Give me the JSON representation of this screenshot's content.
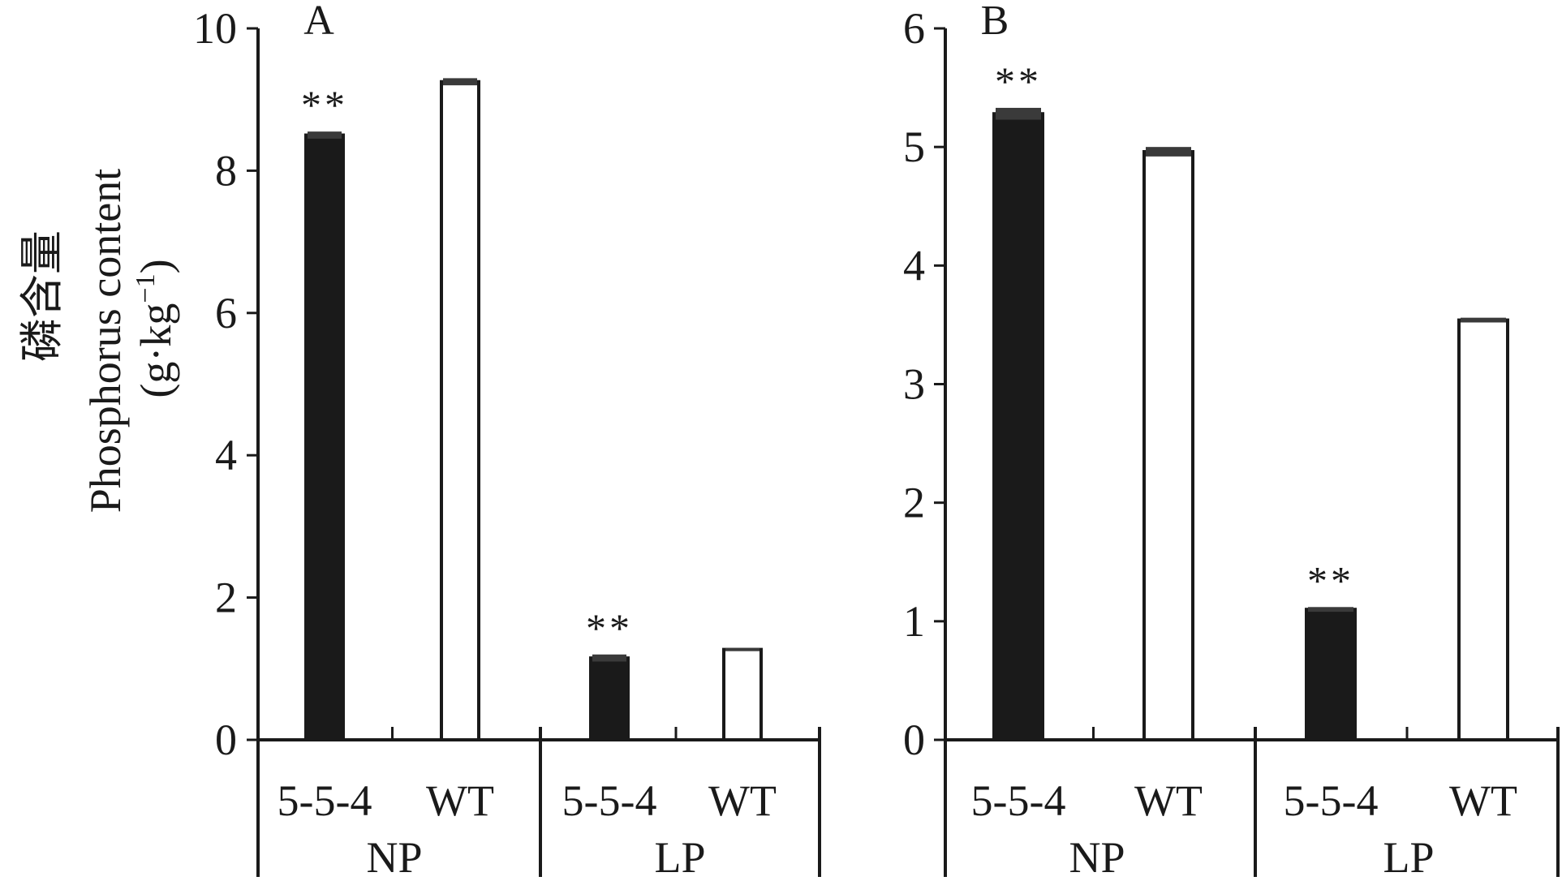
{
  "y_axis_label": {
    "line1": "磷含量",
    "line2": "Phosphorus content",
    "line3_open": "(g·kg",
    "line3_sup": "−1",
    "line3_close": ")"
  },
  "colors": {
    "bar_5_5_4": "#1a1a1a",
    "bar_WT": "#ffffff",
    "axis": "#1a1a1a"
  },
  "chart_data": [
    {
      "type": "bar",
      "panel": "A",
      "ylim": [
        0,
        10
      ],
      "yticks": [
        "0",
        "2",
        "4",
        "6",
        "8",
        "10"
      ],
      "groups": [
        "NP",
        "LP"
      ],
      "categories": [
        "5-5-4",
        "WT",
        "5-5-4",
        "WT"
      ],
      "values": [
        8.5,
        9.25,
        1.15,
        1.27
      ],
      "errors": [
        0.05,
        0.05,
        0.05,
        0.02
      ],
      "significance": [
        "**",
        "",
        "**",
        ""
      ],
      "fill": [
        "dark",
        "light",
        "dark",
        "light"
      ]
    },
    {
      "type": "bar",
      "panel": "B",
      "ylim": [
        0,
        6
      ],
      "yticks": [
        "0",
        "1",
        "2",
        "3",
        "4",
        "5",
        "6"
      ],
      "groups": [
        "NP",
        "LP"
      ],
      "categories": [
        "5-5-4",
        "WT",
        "5-5-4",
        "WT"
      ],
      "values": [
        5.28,
        4.96,
        1.1,
        3.54
      ],
      "errors": [
        0.05,
        0.04,
        0.02,
        0.02
      ],
      "significance": [
        "**",
        "",
        "**",
        ""
      ],
      "fill": [
        "dark",
        "light",
        "dark",
        "light"
      ]
    }
  ]
}
